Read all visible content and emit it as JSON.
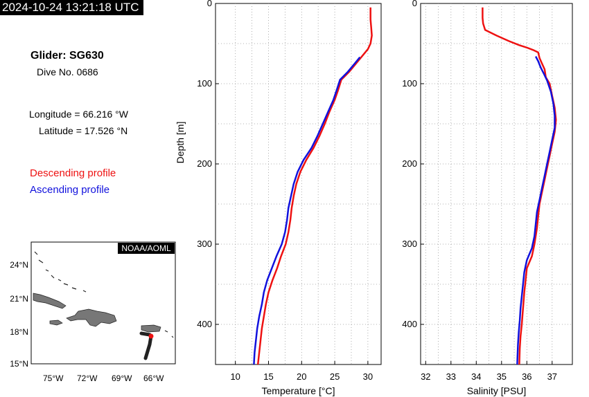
{
  "header": {
    "timestamp": "2024-10-24 13:21:18 UTC",
    "glider_title": "Glider: SG630",
    "dive_no": "Dive No. 0686",
    "longitude": "Longitude = 66.216 °W",
    "latitude": "Latitude = 17.526 °N",
    "legend_descending": "Descending profile",
    "legend_ascending": "Ascending profile"
  },
  "colors": {
    "descending": "#ee1111",
    "ascending": "#1111dd",
    "track": "#222222",
    "land": "#777777"
  },
  "map": {
    "credit": "NOAA/AOML",
    "lat_ticks": [
      "24°N",
      "21°N",
      "18°N",
      "15°N"
    ],
    "lon_ticks": [
      "75°W",
      "72°W",
      "69°W",
      "66°W"
    ]
  },
  "chart_data": [
    {
      "type": "line",
      "xlabel": "Temperature [°C]",
      "ylabel": "Depth [m]",
      "xlim": [
        7,
        32
      ],
      "ylim": [
        450,
        0
      ],
      "x_ticks": [
        "10",
        "15",
        "20",
        "25",
        "30"
      ],
      "y_ticks": [
        "0",
        "100",
        "200",
        "300",
        "400"
      ],
      "grid": true,
      "series": [
        {
          "role": "descending",
          "points": [
            [
              30.4,
              5
            ],
            [
              30.4,
              20
            ],
            [
              30.5,
              30
            ],
            [
              30.6,
              40
            ],
            [
              30.4,
              50
            ],
            [
              30.0,
              57
            ],
            [
              29.2,
              65
            ],
            [
              28.2,
              75
            ],
            [
              27.2,
              85
            ],
            [
              26.0,
              95
            ],
            [
              25.5,
              108
            ],
            [
              25.0,
              120
            ],
            [
              24.2,
              135
            ],
            [
              23.5,
              150
            ],
            [
              22.7,
              165
            ],
            [
              21.8,
              180
            ],
            [
              20.7,
              195
            ],
            [
              19.8,
              210
            ],
            [
              19.2,
              225
            ],
            [
              18.8,
              240
            ],
            [
              18.5,
              255
            ],
            [
              18.3,
              270
            ],
            [
              18.0,
              285
            ],
            [
              17.6,
              300
            ],
            [
              16.9,
              315
            ],
            [
              16.3,
              330
            ],
            [
              15.6,
              345
            ],
            [
              15.0,
              360
            ],
            [
              14.6,
              375
            ],
            [
              14.3,
              390
            ],
            [
              14.0,
              405
            ],
            [
              13.8,
              420
            ],
            [
              13.6,
              435
            ],
            [
              13.4,
              450
            ]
          ]
        },
        {
          "role": "ascending",
          "points": [
            [
              28.8,
              67
            ],
            [
              28.0,
              75
            ],
            [
              27.0,
              85
            ],
            [
              25.8,
              95
            ],
            [
              25.3,
              108
            ],
            [
              24.8,
              120
            ],
            [
              24.0,
              135
            ],
            [
              23.2,
              150
            ],
            [
              22.4,
              165
            ],
            [
              21.5,
              180
            ],
            [
              20.3,
              195
            ],
            [
              19.4,
              210
            ],
            [
              18.8,
              225
            ],
            [
              18.4,
              240
            ],
            [
              18.0,
              255
            ],
            [
              17.8,
              270
            ],
            [
              17.5,
              285
            ],
            [
              17.0,
              300
            ],
            [
              16.2,
              315
            ],
            [
              15.5,
              330
            ],
            [
              14.8,
              345
            ],
            [
              14.3,
              360
            ],
            [
              14.0,
              375
            ],
            [
              13.6,
              390
            ],
            [
              13.3,
              405
            ],
            [
              13.1,
              420
            ],
            [
              12.9,
              435
            ],
            [
              12.8,
              450
            ]
          ]
        }
      ]
    },
    {
      "type": "line",
      "xlabel": "Salinity [PSU]",
      "ylabel": "",
      "xlim": [
        31.8,
        37.8
      ],
      "ylim": [
        450,
        0
      ],
      "x_ticks": [
        "32",
        "33",
        "34",
        "35",
        "36",
        "37"
      ],
      "y_ticks": [
        "0",
        "100",
        "200",
        "300",
        "400"
      ],
      "grid": true,
      "series": [
        {
          "role": "descending",
          "points": [
            [
              34.25,
              5
            ],
            [
              34.25,
              18
            ],
            [
              34.27,
              25
            ],
            [
              34.35,
              33
            ],
            [
              34.8,
              40
            ],
            [
              35.3,
              47
            ],
            [
              35.7,
              52
            ],
            [
              36.0,
              55
            ],
            [
              36.25,
              58
            ],
            [
              36.45,
              61
            ],
            [
              36.5,
              68
            ],
            [
              36.6,
              75
            ],
            [
              36.7,
              82
            ],
            [
              36.75,
              92
            ],
            [
              36.9,
              100
            ],
            [
              37.0,
              115
            ],
            [
              37.1,
              130
            ],
            [
              37.15,
              145
            ],
            [
              37.1,
              160
            ],
            [
              37.0,
              175
            ],
            [
              36.9,
              190
            ],
            [
              36.8,
              205
            ],
            [
              36.7,
              220
            ],
            [
              36.6,
              235
            ],
            [
              36.5,
              250
            ],
            [
              36.45,
              265
            ],
            [
              36.4,
              280
            ],
            [
              36.35,
              290
            ],
            [
              36.3,
              300
            ],
            [
              36.2,
              315
            ],
            [
              36.0,
              330
            ],
            [
              35.95,
              345
            ],
            [
              35.9,
              360
            ],
            [
              35.85,
              380
            ],
            [
              35.8,
              400
            ],
            [
              35.75,
              415
            ],
            [
              35.72,
              430
            ],
            [
              35.7,
              450
            ]
          ]
        },
        {
          "role": "ascending",
          "points": [
            [
              36.35,
              66
            ],
            [
              36.45,
              72
            ],
            [
              36.55,
              80
            ],
            [
              36.68,
              88
            ],
            [
              36.8,
              96
            ],
            [
              36.95,
              110
            ],
            [
              37.05,
              125
            ],
            [
              37.1,
              140
            ],
            [
              37.1,
              155
            ],
            [
              37.0,
              170
            ],
            [
              36.9,
              185
            ],
            [
              36.8,
              200
            ],
            [
              36.7,
              215
            ],
            [
              36.6,
              230
            ],
            [
              36.5,
              245
            ],
            [
              36.4,
              260
            ],
            [
              36.35,
              275
            ],
            [
              36.3,
              290
            ],
            [
              36.2,
              305
            ],
            [
              36.0,
              320
            ],
            [
              35.9,
              335
            ],
            [
              35.85,
              350
            ],
            [
              35.8,
              365
            ],
            [
              35.75,
              380
            ],
            [
              35.72,
              395
            ],
            [
              35.68,
              410
            ],
            [
              35.65,
              425
            ],
            [
              35.63,
              440
            ],
            [
              35.62,
              450
            ]
          ]
        }
      ]
    }
  ]
}
